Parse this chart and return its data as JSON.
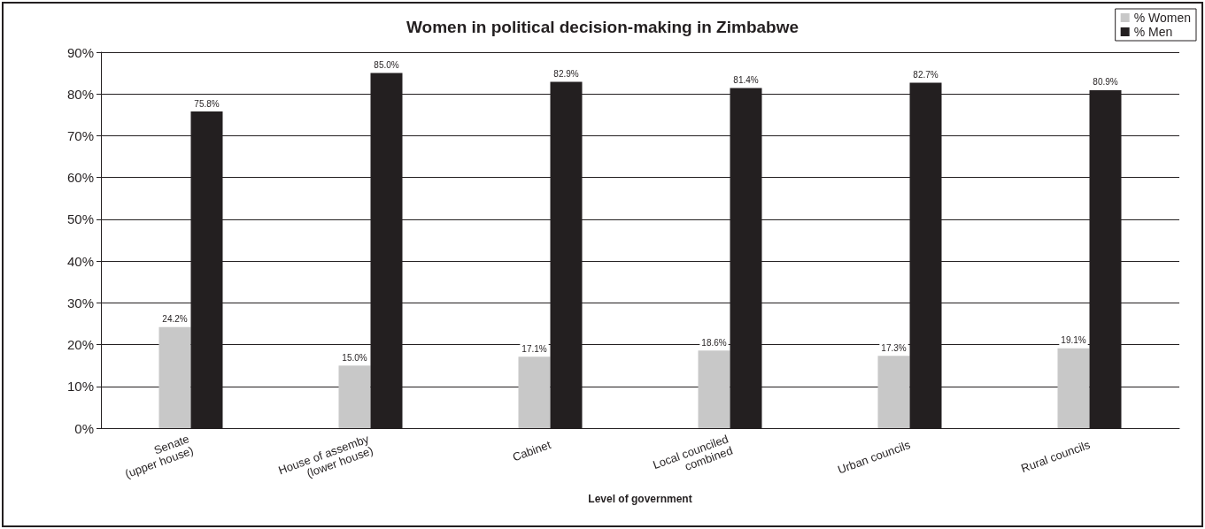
{
  "chart_data": {
    "type": "bar",
    "title": "Women in political decision-making in Zimbabwe",
    "xlabel": "Level of government",
    "categories": [
      "Senate\n(upper house)",
      "House of assemby\n(lower house)",
      "Cabinet",
      "Local counciled\ncombined",
      "Urban councils",
      "Rural councils"
    ],
    "series": [
      {
        "name": "% Women",
        "color": "#c8c8c8",
        "values": [
          24.2,
          15.0,
          17.1,
          18.6,
          17.3,
          19.1
        ],
        "value_labels": [
          "24.2%",
          "15.0%",
          "17.1%",
          "18.6%",
          "17.3%",
          "19.1%"
        ]
      },
      {
        "name": "% Men",
        "color": "#231f20",
        "values": [
          75.8,
          85.0,
          82.9,
          81.4,
          82.7,
          80.9
        ],
        "value_labels": [
          "75.8%",
          "85.0%",
          "82.9%",
          "81.4%",
          "82.7%",
          "80.9%"
        ]
      }
    ],
    "ylim": [
      0,
      90
    ],
    "yticks": [
      {
        "value": 0,
        "label": "0%"
      },
      {
        "value": 10,
        "label": "10%"
      },
      {
        "value": 20,
        "label": "20%"
      },
      {
        "value": 30,
        "label": "30%"
      },
      {
        "value": 40,
        "label": "40%"
      },
      {
        "value": 50,
        "label": "50%"
      },
      {
        "value": 60,
        "label": "60%"
      },
      {
        "value": 70,
        "label": "70%"
      },
      {
        "value": 80,
        "label": "80%"
      },
      {
        "value": 90,
        "label": "90%"
      }
    ],
    "grid": "y",
    "legend": "top right"
  }
}
